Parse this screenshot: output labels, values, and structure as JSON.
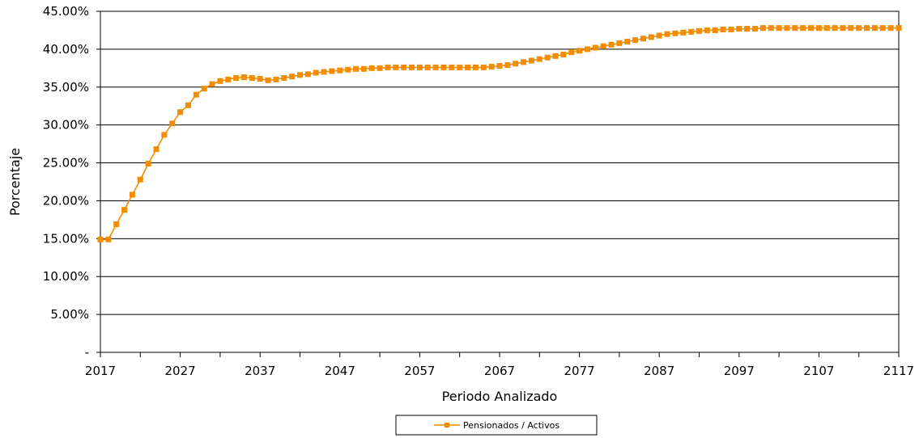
{
  "chart_data": {
    "type": "line",
    "title": "",
    "xlabel": "Periodo Analizado",
    "ylabel": "Porcentaje",
    "xlim": [
      2017,
      2117
    ],
    "ylim": [
      0,
      45
    ],
    "x_ticks": [
      2017,
      2027,
      2037,
      2047,
      2057,
      2067,
      2077,
      2087,
      2097,
      2107,
      2117
    ],
    "y_ticks": [
      "-",
      "5.00%",
      "10.00%",
      "15.00%",
      "20.00%",
      "25.00%",
      "30.00%",
      "35.00%",
      "40.00%",
      "45.00%"
    ],
    "y_tick_values": [
      0,
      5,
      10,
      15,
      20,
      25,
      30,
      35,
      40,
      45
    ],
    "grid": true,
    "legend_position": "bottom",
    "series": [
      {
        "name": "Pensionados / Activos",
        "color": "#F28C00",
        "marker": "square",
        "x_start": 2017,
        "x_step": 1,
        "values": [
          14.9,
          14.9,
          16.9,
          18.8,
          20.8,
          22.8,
          24.9,
          26.8,
          28.7,
          30.2,
          31.7,
          32.6,
          34.0,
          34.8,
          35.4,
          35.8,
          36.0,
          36.2,
          36.3,
          36.2,
          36.1,
          35.9,
          36.0,
          36.2,
          36.4,
          36.6,
          36.7,
          36.9,
          37.0,
          37.1,
          37.2,
          37.3,
          37.4,
          37.4,
          37.5,
          37.5,
          37.6,
          37.6,
          37.6,
          37.6,
          37.6,
          37.6,
          37.6,
          37.6,
          37.6,
          37.6,
          37.6,
          37.6,
          37.6,
          37.7,
          37.8,
          37.9,
          38.1,
          38.3,
          38.5,
          38.7,
          38.9,
          39.1,
          39.3,
          39.6,
          39.8,
          40.0,
          40.2,
          40.4,
          40.6,
          40.8,
          41.0,
          41.2,
          41.4,
          41.6,
          41.8,
          42.0,
          42.1,
          42.2,
          42.3,
          42.4,
          42.5,
          42.5,
          42.6,
          42.6,
          42.7,
          42.7,
          42.7,
          42.8,
          42.8,
          42.8,
          42.8,
          42.8,
          42.8,
          42.8,
          42.8,
          42.8,
          42.8,
          42.8,
          42.8,
          42.8,
          42.8,
          42.8,
          42.8,
          42.8,
          42.8
        ]
      }
    ]
  }
}
